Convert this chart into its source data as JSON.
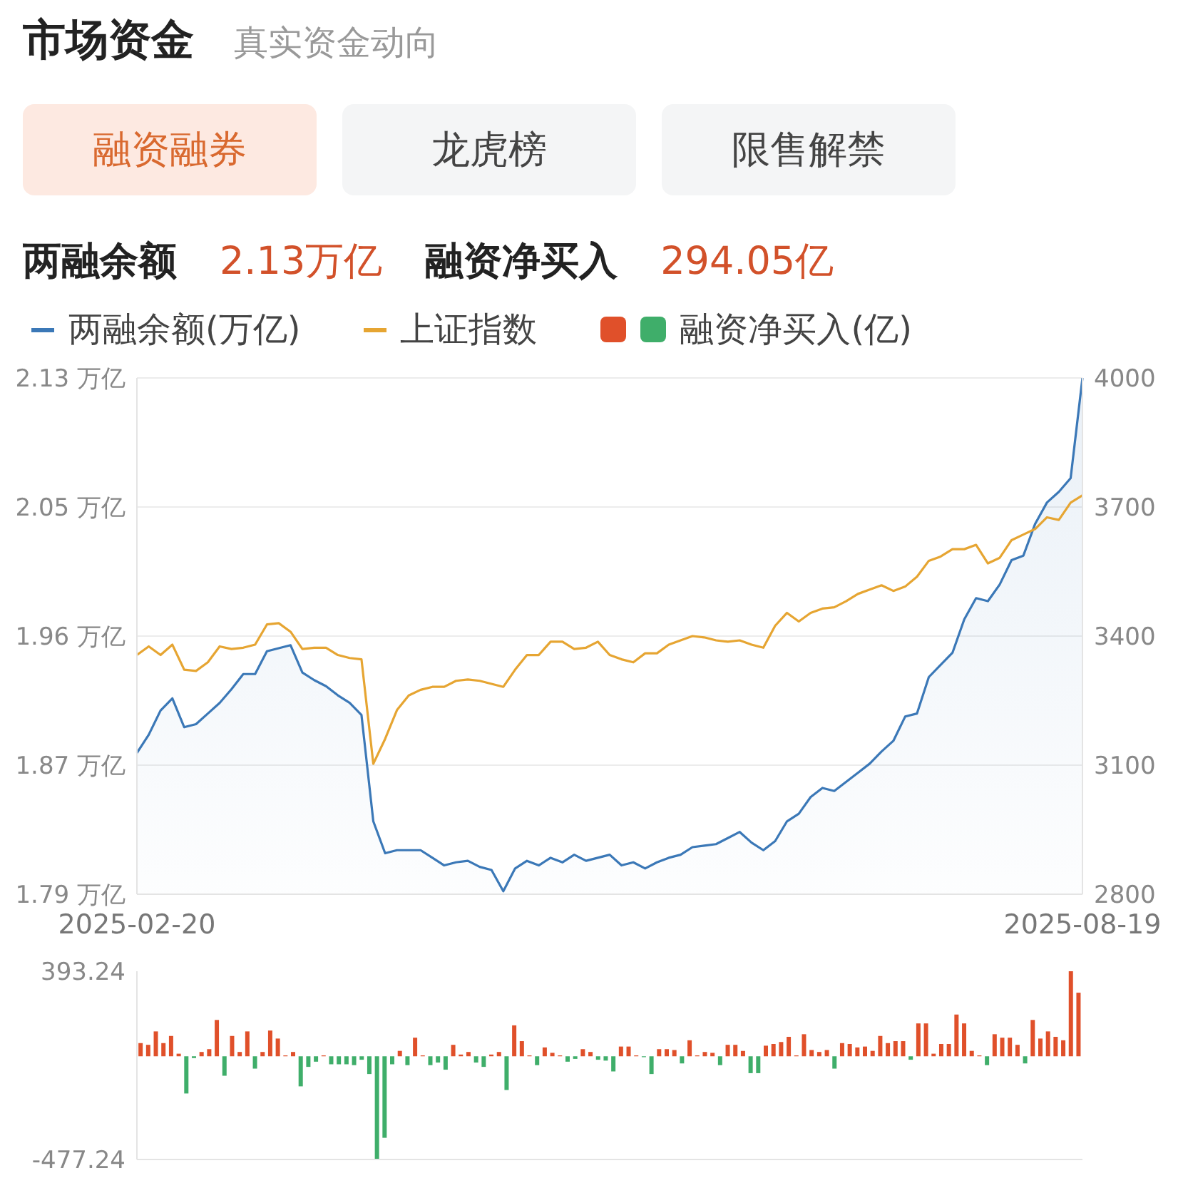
{
  "chart_data": [
    {
      "type": "line",
      "title": "市场资金",
      "subtitle": "真实资金动向",
      "annotations": [
        "融资融券",
        "龙虎榜",
        "限售解禁",
        "两融余额",
        "2.13万亿",
        "融资净买入",
        "294.05亿"
      ],
      "categories": [
        "2025-02-20",
        null,
        null,
        null,
        null,
        null,
        null,
        null,
        null,
        null,
        null,
        null,
        null,
        null,
        null,
        null,
        null,
        null,
        null,
        null,
        null,
        null,
        null,
        null,
        null,
        null,
        null,
        null,
        null,
        null,
        null,
        null,
        null,
        null,
        null,
        null,
        null,
        null,
        null,
        null,
        null,
        null,
        null,
        null,
        null,
        null,
        null,
        null,
        null,
        null,
        null,
        null,
        null,
        null,
        null,
        null,
        null,
        null,
        null,
        null,
        null,
        null,
        null,
        null,
        null,
        null,
        null,
        null,
        null,
        null,
        null,
        null,
        null,
        null,
        null,
        null,
        null,
        null,
        null,
        null,
        "2025-08-19"
      ],
      "series": [
        {
          "name": "两融余额(万亿)",
          "type": "area",
          "color": "#3b78b7",
          "values": [
            1.883,
            1.895,
            1.911,
            1.919,
            1.9,
            1.902,
            1.909,
            1.916,
            1.925,
            1.935,
            1.935,
            1.95,
            1.952,
            1.954,
            1.936,
            1.931,
            1.927,
            1.921,
            1.916,
            1.908,
            1.838,
            1.817,
            1.819,
            1.819,
            1.819,
            1.814,
            1.809,
            1.811,
            1.812,
            1.808,
            1.806,
            1.792,
            1.807,
            1.812,
            1.809,
            1.814,
            1.811,
            1.816,
            1.812,
            1.814,
            1.816,
            1.809,
            1.811,
            1.807,
            1.811,
            1.814,
            1.816,
            1.821,
            1.822,
            1.823,
            1.827,
            1.831,
            1.824,
            1.819,
            1.825,
            1.838,
            1.843,
            1.854,
            1.86,
            1.858,
            1.864,
            1.87,
            1.876,
            1.884,
            1.891,
            1.907,
            1.909,
            1.933,
            1.941,
            1.949,
            1.971,
            1.985,
            1.983,
            1.994,
            2.01,
            2.013,
            2.034,
            2.048,
            2.055,
            2.064,
            2.13
          ]
        },
        {
          "name": "上证指数",
          "axis": "y2",
          "color": "#e6a532",
          "values": [
            3356,
            3376,
            3356,
            3380,
            3322,
            3319,
            3339,
            3376,
            3370,
            3373,
            3380,
            3427,
            3430,
            3410,
            3370,
            3373,
            3373,
            3356,
            3349,
            3346,
            3103,
            3161,
            3228,
            3262,
            3275,
            3282,
            3282,
            3296,
            3299,
            3296,
            3289,
            3282,
            3322,
            3356,
            3356,
            3387,
            3387,
            3370,
            3373,
            3387,
            3356,
            3346,
            3339,
            3360,
            3360,
            3380,
            3390,
            3400,
            3397,
            3390,
            3387,
            3390,
            3380,
            3373,
            3424,
            3454,
            3434,
            3454,
            3464,
            3467,
            3481,
            3498,
            3508,
            3518,
            3505,
            3515,
            3538,
            3575,
            3585,
            3602,
            3602,
            3612,
            3569,
            3582,
            3623,
            3636,
            3649,
            3676,
            3670,
            3710,
            3727
          ]
        }
      ],
      "ylim": [
        1.79,
        2.13
      ],
      "yticks": [
        {
          "value": 1.79,
          "label": "1.79 万亿"
        },
        {
          "value": 1.875,
          "label": "1.87 万亿"
        },
        {
          "value": 1.96,
          "label": "1.96 万亿"
        },
        {
          "value": 2.045,
          "label": "2.05 万亿"
        },
        {
          "value": 2.13,
          "label": "2.13 万亿"
        }
      ],
      "y2lim": [
        2800,
        4000
      ],
      "y2ticks": [
        2800,
        3100,
        3400,
        3700,
        4000
      ],
      "grid": "y",
      "legend": "top"
    },
    {
      "type": "bar",
      "categories": [
        null,
        null,
        null,
        null,
        null,
        null,
        null,
        null,
        null,
        null,
        null,
        null,
        null,
        null,
        null,
        null,
        null,
        null,
        null,
        null,
        null,
        null,
        null,
        null,
        null,
        null,
        null,
        null,
        null,
        null,
        null,
        null,
        null,
        null,
        null,
        null,
        null,
        null,
        null,
        null,
        null,
        null,
        null,
        null,
        null,
        null,
        null,
        null,
        null,
        null,
        null,
        null,
        null,
        null,
        null,
        null,
        null,
        null,
        null,
        null,
        null,
        null,
        null,
        null,
        null,
        null,
        null,
        null,
        null,
        null,
        null,
        null,
        null,
        null,
        null,
        null,
        null,
        null,
        null,
        null,
        null,
        null,
        null,
        null,
        null,
        null,
        null,
        null,
        null,
        null,
        null,
        null,
        null,
        null,
        null,
        null,
        null,
        null,
        null,
        null,
        null,
        null,
        null,
        null,
        null,
        null,
        null,
        null,
        null,
        null,
        null,
        null,
        null,
        null,
        null,
        null,
        null,
        null,
        null,
        null,
        null,
        null,
        null,
        null
      ],
      "series": [
        {
          "name": "融资净买入(亿)",
          "values": [
            61,
            53,
            115,
            61,
            94,
            12,
            -172,
            -8,
            20,
            33,
            168,
            -90,
            94,
            20,
            115,
            -57,
            20,
            119,
            82,
            4,
            20,
            -139,
            -49,
            -25,
            4,
            -37,
            -37,
            -37,
            -41,
            -16,
            -82,
            -477.24,
            -377,
            -37,
            25,
            -41,
            86,
            4,
            -41,
            -29,
            -62,
            53,
            8,
            20,
            -29,
            -49,
            8,
            20,
            -156,
            143,
            70,
            4,
            -41,
            41,
            16,
            4,
            -25,
            -12,
            33,
            20,
            -16,
            -20,
            -70,
            45,
            45,
            4,
            -4,
            -82,
            33,
            33,
            29,
            -33,
            74,
            4,
            20,
            16,
            -41,
            53,
            53,
            25,
            -78,
            -78,
            49,
            57,
            66,
            90,
            4,
            102,
            29,
            20,
            29,
            -57,
            61,
            57,
            41,
            45,
            25,
            94,
            61,
            70,
            70,
            -16,
            152,
            152,
            12,
            57,
            57,
            193,
            152,
            25,
            4,
            -41,
            102,
            86,
            86,
            53,
            -33,
            168,
            82,
            115,
            90,
            74,
            393.24,
            294.05
          ],
          "colors": [
            "#e0502a",
            "#e0502a",
            "#e0502a",
            "#e0502a",
            "#e0502a",
            "#e0502a",
            "#3fae6a",
            "#3fae6a",
            "#e0502a",
            "#e0502a",
            "#e0502a",
            "#3fae6a",
            "#e0502a",
            "#e0502a",
            "#e0502a",
            "#3fae6a",
            "#e0502a",
            "#e0502a",
            "#e0502a",
            "#e0502a",
            "#e0502a",
            "#3fae6a",
            "#3fae6a",
            "#3fae6a",
            "#e0502a",
            "#3fae6a",
            "#3fae6a",
            "#3fae6a",
            "#3fae6a",
            "#3fae6a",
            "#3fae6a",
            "#3fae6a",
            "#3fae6a",
            "#3fae6a",
            "#e0502a",
            "#3fae6a",
            "#e0502a",
            "#e0502a",
            "#3fae6a",
            "#3fae6a",
            "#3fae6a",
            "#e0502a",
            "#e0502a",
            "#e0502a",
            "#3fae6a",
            "#3fae6a",
            "#e0502a",
            "#e0502a",
            "#3fae6a",
            "#e0502a",
            "#e0502a",
            "#e0502a",
            "#3fae6a",
            "#e0502a",
            "#e0502a",
            "#e0502a",
            "#3fae6a",
            "#3fae6a",
            "#e0502a",
            "#e0502a",
            "#3fae6a",
            "#3fae6a",
            "#3fae6a",
            "#e0502a",
            "#e0502a",
            "#e0502a",
            "#3fae6a",
            "#3fae6a",
            "#e0502a",
            "#e0502a",
            "#e0502a",
            "#3fae6a",
            "#e0502a",
            "#e0502a",
            "#e0502a",
            "#e0502a",
            "#3fae6a",
            "#e0502a",
            "#e0502a",
            "#e0502a",
            "#3fae6a",
            "#3fae6a",
            "#e0502a",
            "#e0502a",
            "#e0502a",
            "#e0502a",
            "#e0502a",
            "#e0502a",
            "#e0502a",
            "#e0502a",
            "#e0502a",
            "#3fae6a",
            "#e0502a",
            "#e0502a",
            "#e0502a",
            "#e0502a",
            "#e0502a",
            "#e0502a",
            "#e0502a",
            "#e0502a",
            "#e0502a",
            "#3fae6a",
            "#e0502a",
            "#e0502a",
            "#e0502a",
            "#e0502a",
            "#e0502a",
            "#e0502a",
            "#e0502a",
            "#e0502a",
            "#e0502a",
            "#3fae6a",
            "#e0502a",
            "#e0502a",
            "#e0502a",
            "#e0502a",
            "#3fae6a",
            "#e0502a",
            "#e0502a",
            "#e0502a",
            "#e0502a",
            "#e0502a",
            "#e0502a",
            "#e0502a"
          ]
        }
      ],
      "ylim": [
        -477.24,
        393.24
      ],
      "yticks": [
        -477.24,
        393.24
      ],
      "tick_labels": "y",
      "legend": "top"
    }
  ]
}
